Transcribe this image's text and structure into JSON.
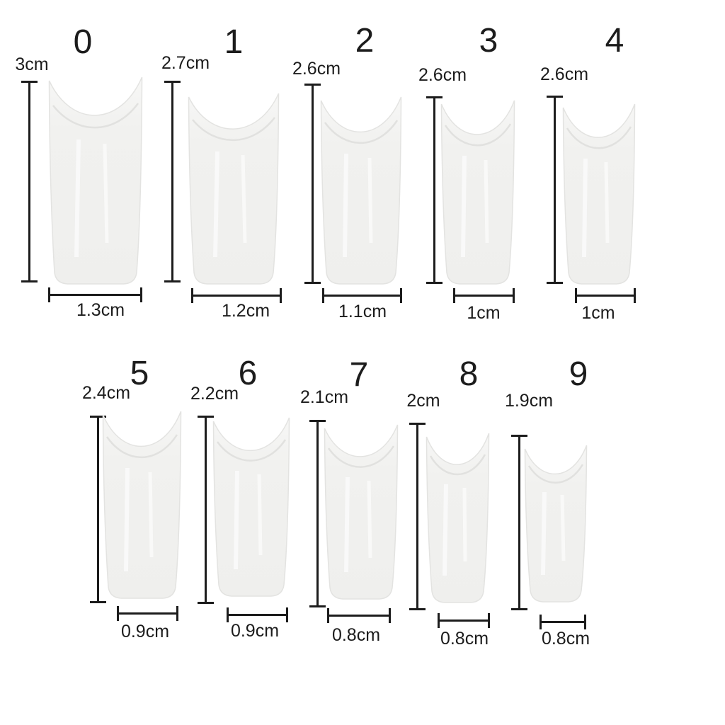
{
  "chart": {
    "items": [
      {
        "size_label": "0",
        "length_label": "3cm",
        "width_label": "1.3cm"
      },
      {
        "size_label": "1",
        "length_label": "2.7cm",
        "width_label": "1.2cm"
      },
      {
        "size_label": "2",
        "length_label": "2.6cm",
        "width_label": "1.1cm"
      },
      {
        "size_label": "3",
        "length_label": "2.6cm",
        "width_label": "1cm"
      },
      {
        "size_label": "4",
        "length_label": "2.6cm",
        "width_label": "1cm"
      },
      {
        "size_label": "5",
        "length_label": "2.4cm",
        "width_label": "0.9cm"
      },
      {
        "size_label": "6",
        "length_label": "2.2cm",
        "width_label": "0.9cm"
      },
      {
        "size_label": "7",
        "length_label": "2.1cm",
        "width_label": "0.8cm"
      },
      {
        "size_label": "8",
        "length_label": "2cm",
        "width_label": "0.8cm"
      },
      {
        "size_label": "9",
        "length_label": "1.9cm",
        "width_label": "0.8cm"
      }
    ],
    "colors": {
      "ink": "#1c1c1c",
      "nail_fill": "#f1f1ef",
      "nail_edge": "#e3e3e1",
      "background": "#ffffff"
    }
  }
}
